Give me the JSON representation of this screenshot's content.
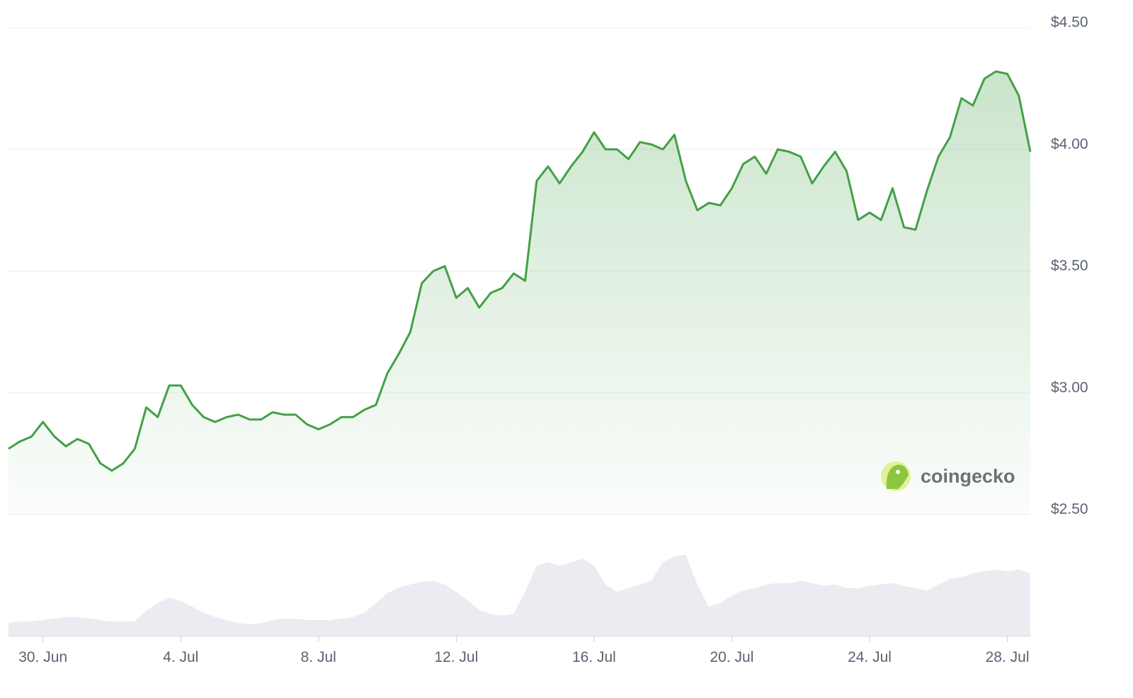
{
  "chart_data": {
    "type": "line",
    "categories": [
      null,
      null,
      null,
      "30. Jun",
      null,
      null,
      null,
      null,
      null,
      null,
      null,
      null,
      null,
      null,
      null,
      "4. Jul",
      null,
      null,
      null,
      null,
      null,
      null,
      null,
      null,
      null,
      null,
      null,
      "8. Jul",
      null,
      null,
      null,
      null,
      null,
      null,
      null,
      null,
      null,
      null,
      null,
      "12. Jul",
      null,
      null,
      null,
      null,
      null,
      null,
      null,
      null,
      null,
      null,
      null,
      "16. Jul",
      null,
      null,
      null,
      null,
      null,
      null,
      null,
      null,
      null,
      null,
      null,
      "20. Jul",
      null,
      null,
      null,
      null,
      null,
      null,
      null,
      null,
      null,
      null,
      null,
      "24. Jul",
      null,
      null,
      null,
      null,
      null,
      null,
      null,
      null,
      null,
      null,
      null,
      "28. Jul",
      null,
      null
    ],
    "values": [
      2.77,
      2.8,
      2.82,
      2.88,
      2.82,
      2.78,
      2.81,
      2.79,
      2.71,
      2.68,
      2.71,
      2.77,
      2.94,
      2.9,
      3.03,
      3.03,
      2.95,
      2.9,
      2.88,
      2.9,
      2.91,
      2.89,
      2.89,
      2.92,
      2.91,
      2.91,
      2.87,
      2.85,
      2.87,
      2.9,
      2.9,
      2.93,
      2.95,
      3.08,
      3.16,
      3.25,
      3.45,
      3.5,
      3.52,
      3.39,
      3.43,
      3.35,
      3.41,
      3.43,
      3.49,
      3.46,
      3.87,
      3.93,
      3.86,
      3.93,
      3.99,
      4.07,
      4.0,
      4.0,
      3.96,
      4.03,
      4.02,
      4.0,
      4.06,
      3.87,
      3.75,
      3.78,
      3.77,
      3.84,
      3.94,
      3.97,
      3.9,
      4.0,
      3.99,
      3.97,
      3.86,
      3.93,
      3.99,
      3.91,
      3.71,
      3.74,
      3.71,
      3.84,
      3.68,
      3.67,
      3.83,
      3.97,
      4.05,
      4.21,
      4.18,
      4.29,
      4.32,
      4.31,
      4.22,
      3.99
    ],
    "volume": [
      18,
      20,
      20,
      22,
      24,
      26,
      26,
      24,
      22,
      20,
      20,
      20,
      35,
      45,
      52,
      48,
      40,
      32,
      26,
      22,
      18,
      16,
      18,
      22,
      24,
      24,
      22,
      22,
      22,
      24,
      26,
      32,
      45,
      58,
      66,
      70,
      74,
      75,
      70,
      60,
      48,
      36,
      30,
      28,
      30,
      60,
      95,
      100,
      95,
      100,
      105,
      95,
      70,
      60,
      65,
      70,
      75,
      100,
      108,
      110,
      70,
      40,
      45,
      55,
      62,
      65,
      70,
      72,
      72,
      75,
      72,
      68,
      70,
      65,
      65,
      68,
      70,
      72,
      68,
      65,
      62,
      70,
      78,
      80,
      85,
      88,
      90,
      88,
      90,
      85
    ],
    "color": "#43a047",
    "volume_color": "#ebebf1",
    "ylim": [
      2.5,
      4.5
    ],
    "yticks": [
      {
        "value": 2.5,
        "label": "$2.50"
      },
      {
        "value": 3,
        "label": "$3.00"
      },
      {
        "value": 3.5,
        "label": "$3.50"
      },
      {
        "value": 4,
        "label": "$4.00"
      },
      {
        "value": 4.5,
        "label": "$4.50"
      }
    ],
    "grid": true,
    "watermark": "coingecko"
  }
}
